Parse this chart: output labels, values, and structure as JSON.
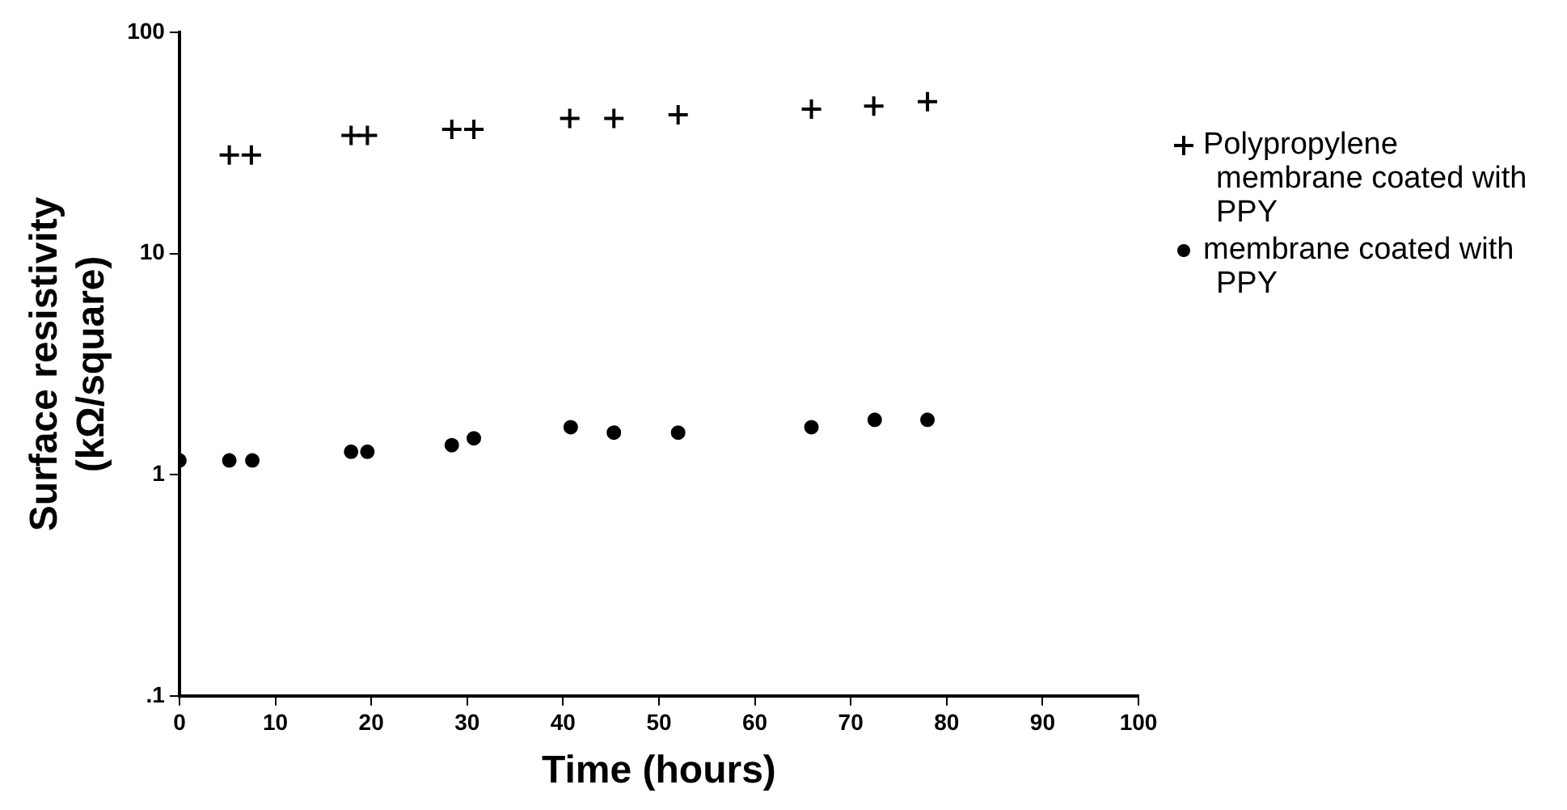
{
  "chart_data": {
    "type": "scatter",
    "xlabel": "Time (hours)",
    "ylabel": "Surface resistivity\n(kΩ/square)",
    "log": "y",
    "xlim": [
      0,
      100
    ],
    "xticks": [
      0,
      10,
      20,
      30,
      40,
      50,
      60,
      70,
      80,
      90,
      100
    ],
    "ylim": [
      0.1,
      100
    ],
    "yticks": [
      {
        "value": 0.1,
        "label": ".1"
      },
      1,
      10,
      100
    ],
    "grid": false,
    "legend": "right",
    "series": [
      {
        "name": "Polypropylene membrane coated with PPY",
        "color": "#000000",
        "marker": "cross",
        "x": [
          5.2,
          7.5,
          17.9,
          19.6,
          28.4,
          30.7,
          40.7,
          45.3,
          52,
          65.9,
          72.4,
          78
        ],
        "values": [
          27.9,
          27.9,
          34.2,
          34.2,
          36.4,
          36.4,
          40.8,
          40.8,
          42.4,
          45,
          46.4,
          48.6
        ]
      },
      {
        "name": "membrane coated with PPY",
        "color": "#000000",
        "marker": "circle",
        "x": [
          0,
          5.2,
          7.6,
          17.9,
          19.6,
          28.4,
          30.7,
          40.8,
          45.3,
          52,
          65.9,
          72.5,
          78
        ],
        "values": [
          1.16,
          1.16,
          1.16,
          1.27,
          1.27,
          1.36,
          1.46,
          1.64,
          1.55,
          1.55,
          1.64,
          1.77,
          1.77
        ]
      }
    ]
  }
}
